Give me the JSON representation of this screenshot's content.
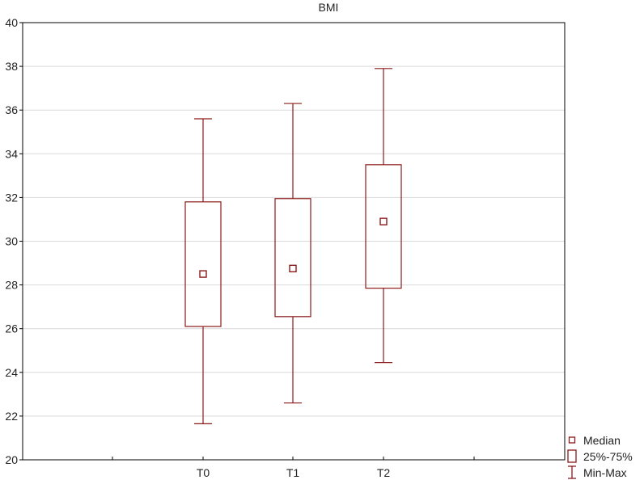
{
  "chart_data": {
    "type": "boxplot",
    "title": "BMI",
    "xlabel": "",
    "ylabel": "",
    "categories": [
      "T0",
      "T1",
      "T2"
    ],
    "boxes": [
      {
        "category": "T0",
        "min": 21.65,
        "q1": 26.1,
        "median": 28.5,
        "q3": 31.8,
        "max": 35.6
      },
      {
        "category": "T1",
        "min": 22.6,
        "q1": 26.55,
        "median": 28.75,
        "q3": 31.95,
        "max": 36.3
      },
      {
        "category": "T2",
        "min": 24.45,
        "q1": 27.85,
        "median": 30.9,
        "q3": 33.5,
        "max": 37.9
      }
    ],
    "ylim": [
      20,
      40
    ],
    "yticks": [
      "20",
      "22",
      "24",
      "26",
      "28",
      "30",
      "32",
      "34",
      "36",
      "38",
      "40"
    ],
    "grid": true,
    "legend": {
      "position": "bottom-right",
      "entries": [
        {
          "symbol": "median-marker",
          "label": "Median"
        },
        {
          "symbol": "box",
          "label": "25%-75%"
        },
        {
          "symbol": "whisker",
          "label": "Min-Max"
        }
      ]
    },
    "colors": {
      "series": "#8b1a1a",
      "grid": "#d9d9d9",
      "axis": "#000000"
    }
  }
}
